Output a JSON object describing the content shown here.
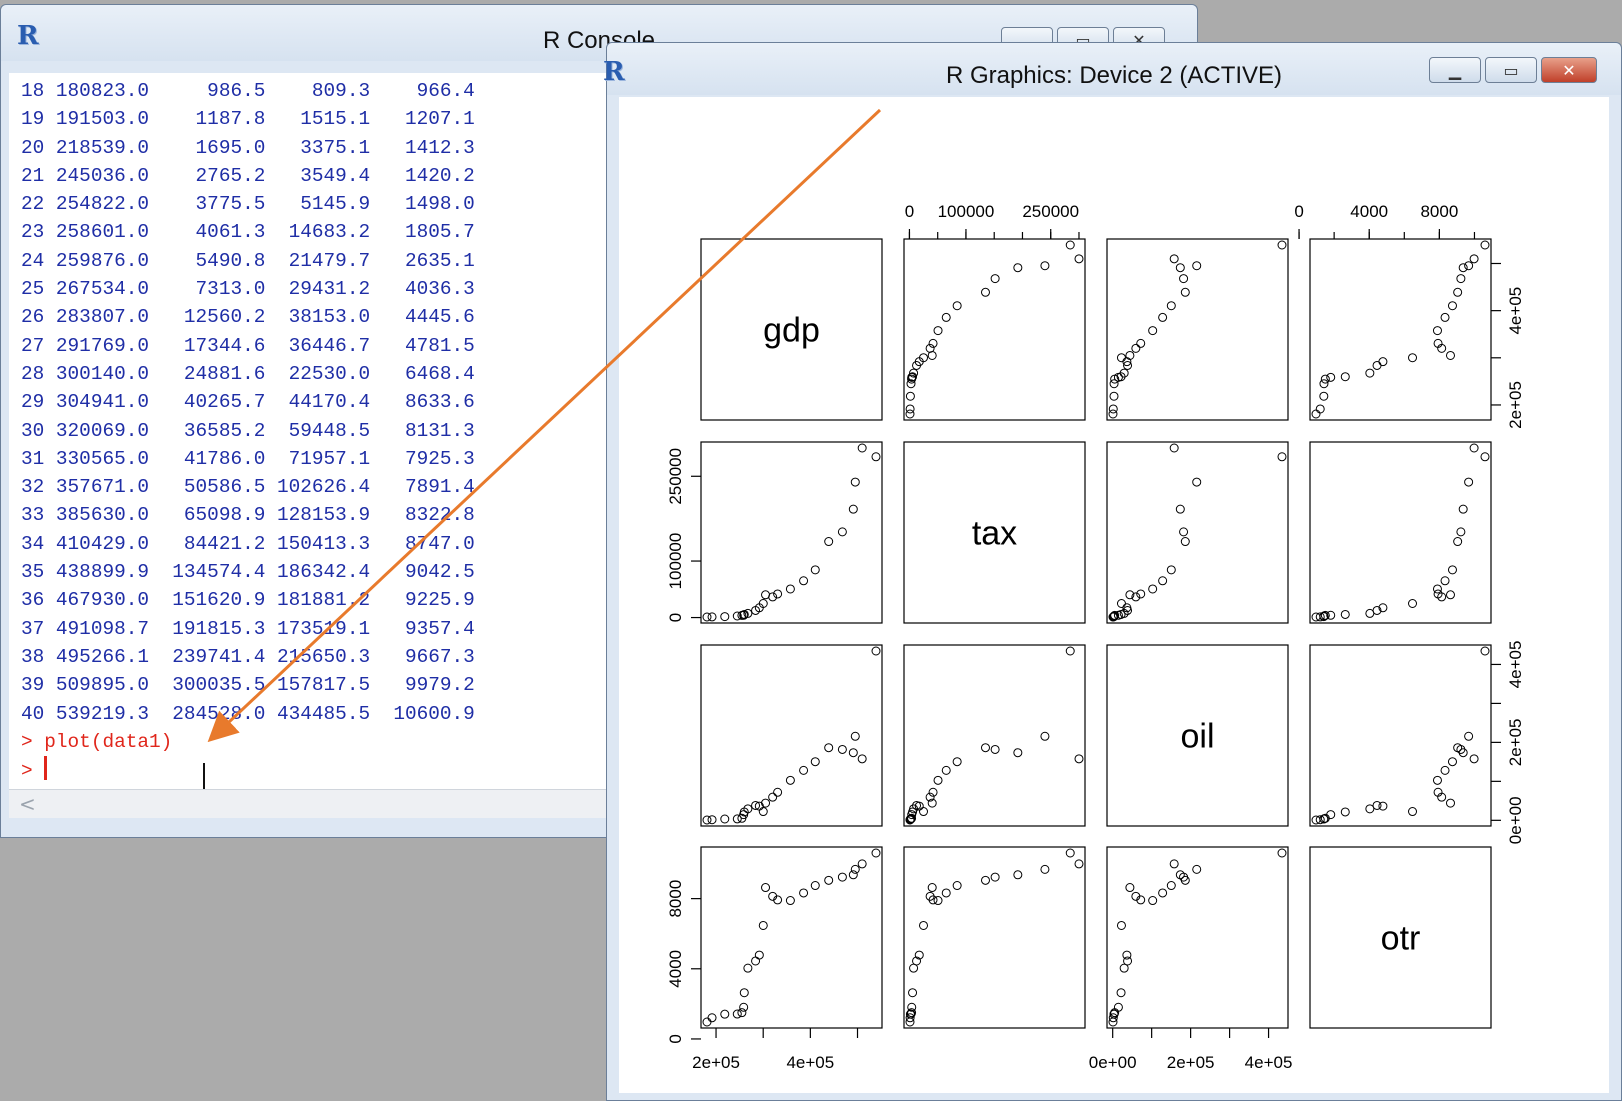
{
  "console": {
    "title": "R Console",
    "lines": [
      "18 180823.0     986.5    809.3    966.4",
      "19 191503.0    1187.8   1515.1   1207.1",
      "20 218539.0    1695.0   3375.1   1412.3",
      "21 245036.0    2765.2   3549.4   1420.2",
      "22 254822.0    3775.5   5145.9   1498.0",
      "23 258601.0    4061.3  14683.2   1805.7",
      "24 259876.0    5490.8  21479.7   2635.1",
      "25 267534.0    7313.0  29431.2   4036.3",
      "26 283807.0   12560.2  38153.0   4445.6",
      "27 291769.0   17344.6  36446.7   4781.5",
      "28 300140.0   24881.6  22530.0   6468.4",
      "29 304941.0   40265.7  44170.4   8633.6",
      "30 320069.0   36585.2  59448.5   8131.3",
      "31 330565.0   41786.0  71957.1   7925.3",
      "32 357671.0   50586.5 102626.4   7891.4",
      "33 385630.0   65098.9 128153.9   8322.8",
      "34 410429.0   84421.2 150413.3   8747.0",
      "35 438899.9  134574.4 186342.4   9042.5",
      "36 467930.0  151620.9 181881.2   9225.9",
      "37 491098.7  191815.3 173519.1   9357.4",
      "38 495266.1  239741.4 215650.3   9667.3",
      "39 509895.0  300035.5 157817.5   9979.2",
      "40 539219.3  284528.0 434485.5  10600.9"
    ],
    "command": "> plot(data1)",
    "prompt": "> "
  },
  "graphics": {
    "title": "R Graphics: Device 2 (ACTIVE)"
  },
  "colors": {
    "annotation_arrow": "#e87a2c",
    "console_text": "#1f2ea6",
    "prompt_text": "#e0261b"
  },
  "chart_data": {
    "type": "scatter",
    "layout": "scatterplot-matrix",
    "variables": [
      "gdp",
      "tax",
      "oil",
      "otr"
    ],
    "rows": [
      [
        18,
        180823.0,
        986.5,
        809.3,
        966.4
      ],
      [
        19,
        191503.0,
        1187.8,
        1515.1,
        1207.1
      ],
      [
        20,
        218539.0,
        1695.0,
        3375.1,
        1412.3
      ],
      [
        21,
        245036.0,
        2765.2,
        3549.4,
        1420.2
      ],
      [
        22,
        254822.0,
        3775.5,
        5145.9,
        1498.0
      ],
      [
        23,
        258601.0,
        4061.3,
        14683.2,
        1805.7
      ],
      [
        24,
        259876.0,
        5490.8,
        21479.7,
        2635.1
      ],
      [
        25,
        267534.0,
        7313.0,
        29431.2,
        4036.3
      ],
      [
        26,
        283807.0,
        12560.2,
        38153.0,
        4445.6
      ],
      [
        27,
        291769.0,
        17344.6,
        36446.7,
        4781.5
      ],
      [
        28,
        300140.0,
        24881.6,
        22530.0,
        6468.4
      ],
      [
        29,
        304941.0,
        40265.7,
        44170.4,
        8633.6
      ],
      [
        30,
        320069.0,
        36585.2,
        59448.5,
        8131.3
      ],
      [
        31,
        330565.0,
        41786.0,
        71957.1,
        7925.3
      ],
      [
        32,
        357671.0,
        50586.5,
        102626.4,
        7891.4
      ],
      [
        33,
        385630.0,
        65098.9,
        128153.9,
        8322.8
      ],
      [
        34,
        410429.0,
        84421.2,
        150413.3,
        8747.0
      ],
      [
        35,
        438899.9,
        134574.4,
        186342.4,
        9042.5
      ],
      [
        36,
        467930.0,
        151620.9,
        181881.2,
        9225.9
      ],
      [
        37,
        491098.7,
        191815.3,
        173519.1,
        9357.4
      ],
      [
        38,
        495266.1,
        239741.4,
        215650.3,
        9667.3
      ],
      [
        39,
        509895.0,
        300035.5,
        157817.5,
        9979.2
      ],
      [
        40,
        539219.3,
        284528.0,
        434485.5,
        10600.9
      ]
    ],
    "ranges": {
      "gdp": [
        180823.0,
        539219.3
      ],
      "tax": [
        986.5,
        300035.5
      ],
      "oil": [
        809.3,
        434485.5
      ],
      "otr": [
        966.4,
        10600.9
      ]
    },
    "ticks": {
      "gdp": {
        "values": [
          200000,
          400000
        ],
        "labels": [
          "2e+05",
          "4e+05"
        ]
      },
      "tax": {
        "values": [
          0,
          100000,
          250000
        ],
        "labels": [
          "0",
          "100000",
          "250000"
        ],
        "left_values": [
          0,
          100000,
          250000
        ],
        "left_labels": [
          "0",
          "100000",
          "250000"
        ]
      },
      "oil": {
        "values": [
          0,
          200000,
          400000
        ],
        "labels": [
          "0e+00",
          "2e+05",
          "4e+05"
        ]
      },
      "otr": {
        "values": [
          0,
          4000,
          8000
        ],
        "labels": [
          "0",
          "4000",
          "8000"
        ]
      },
      "gdp_right": {
        "values": [
          200000,
          400000
        ],
        "labels": [
          "2e+05",
          "4e+05"
        ]
      }
    },
    "top_axis_labels": {
      "tax": [
        "0",
        "100000",
        "250000"
      ],
      "otr": [
        "0",
        "4000",
        "8000"
      ]
    },
    "left_axis_labels": {
      "tax": [
        "0",
        "100000",
        "250000"
      ],
      "otr": [
        "0",
        "4000",
        "8000"
      ]
    },
    "bottom_axis_labels": {
      "gdp": [
        "2e+05",
        "4e+05"
      ],
      "oil": [
        "0e+00",
        "2e+05",
        "4e+05"
      ]
    },
    "right_axis_labels": {
      "gdp": [
        "2e+05",
        "4e+05"
      ],
      "oil": [
        "0e+00",
        "2e+05",
        "4e+05"
      ]
    },
    "grid": false,
    "legend": "none"
  }
}
